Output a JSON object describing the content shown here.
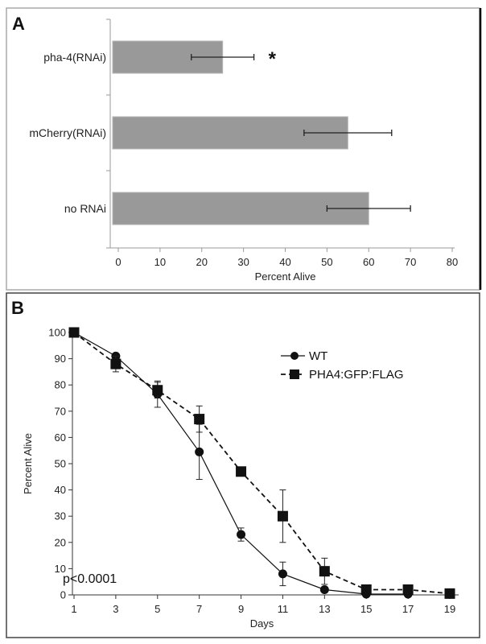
{
  "chart_data": [
    {
      "panel": "A",
      "type": "bar",
      "orientation": "horizontal",
      "categories": [
        "pha-4(RNAi)",
        "mCherry(RNAi)",
        "no RNAi"
      ],
      "values": [
        25,
        55,
        60
      ],
      "error": [
        7.5,
        10.5,
        10
      ],
      "xlabel": "Percent Alive",
      "xlim": [
        0,
        80
      ],
      "xticks": [
        0,
        10,
        20,
        30,
        40,
        50,
        60,
        70,
        80
      ],
      "annotations": [
        {
          "category": "pha-4(RNAi)",
          "text": "*"
        }
      ],
      "bar_color": "#999999"
    },
    {
      "panel": "B",
      "type": "line",
      "xlabel": "Days",
      "ylabel": "Percent Alive",
      "xticks": [
        1,
        3,
        5,
        7,
        9,
        11,
        13,
        15,
        17,
        19
      ],
      "yticks": [
        0,
        10,
        20,
        30,
        40,
        50,
        60,
        70,
        80,
        90,
        100
      ],
      "xlim": [
        1,
        19
      ],
      "ylim": [
        0,
        100
      ],
      "legend_position": "top-right",
      "annotation": "p<0.0001",
      "series": [
        {
          "name": "WT",
          "marker": "circle",
          "line": "solid",
          "x": [
            1,
            3,
            5,
            7,
            9,
            11,
            13,
            15,
            17
          ],
          "y": [
            100,
            91,
            76.5,
            54.5,
            23,
            8,
            2,
            0.3,
            0.3
          ],
          "error": [
            0,
            1,
            5,
            10.5,
            2.5,
            4.5,
            0,
            0,
            0
          ]
        },
        {
          "name": "PHA4:GFP:FLAG",
          "marker": "square",
          "line": "dashed",
          "x": [
            1,
            3,
            5,
            7,
            9,
            11,
            13,
            15,
            17,
            19
          ],
          "y": [
            100,
            88,
            78,
            67,
            47,
            30,
            9,
            2,
            2,
            0.5
          ],
          "error": [
            0,
            3,
            3,
            5,
            0,
            10,
            5,
            0,
            0,
            0
          ]
        }
      ]
    }
  ]
}
